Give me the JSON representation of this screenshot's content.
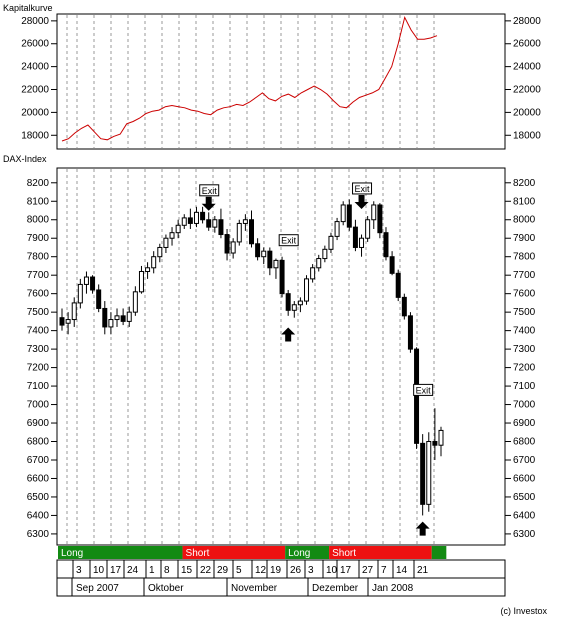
{
  "copyright": "(c) Investox",
  "chart_data": [
    {
      "type": "line",
      "title": "Kapitalkurve",
      "ylim": [
        16800,
        28600
      ],
      "yticks": [
        18000,
        20000,
        22000,
        24000,
        26000,
        28000
      ],
      "grid": "vertical-dashed",
      "line_color": "#cc0000",
      "series": [
        {
          "values": [
            17500,
            17700,
            18200,
            18600,
            18900,
            18300,
            17700,
            17600,
            17900,
            18100,
            19000,
            19200,
            19500,
            19900,
            20100,
            20200,
            20500,
            20600,
            20500,
            20400,
            20200,
            20100,
            19900,
            19800,
            20200,
            20400,
            20500,
            20700,
            20600,
            20900,
            21300,
            21700,
            21200,
            21000,
            21400,
            21600,
            21300,
            21700,
            22000,
            22300,
            22000,
            21600,
            21000,
            20500,
            20400,
            20900,
            21300,
            21500,
            21700,
            22000,
            23000,
            24000,
            26000,
            28300,
            27200,
            26400,
            26400,
            26500,
            26700
          ]
        }
      ]
    },
    {
      "type": "candlestick",
      "title": "DAX-Index",
      "ylim": [
        6240,
        8280
      ],
      "yticks": [
        6300,
        6400,
        6500,
        6600,
        6700,
        6800,
        6900,
        7000,
        7100,
        7200,
        7300,
        7400,
        7500,
        7600,
        7700,
        7800,
        7900,
        8000,
        8100,
        8200
      ],
      "grid": "vertical-dashed",
      "candles": [
        [
          7470,
          7520,
          7400,
          7430
        ],
        [
          7440,
          7500,
          7380,
          7460
        ],
        [
          7460,
          7580,
          7420,
          7550
        ],
        [
          7550,
          7680,
          7520,
          7650
        ],
        [
          7650,
          7720,
          7600,
          7690
        ],
        [
          7690,
          7700,
          7600,
          7620
        ],
        [
          7620,
          7650,
          7500,
          7520
        ],
        [
          7520,
          7560,
          7380,
          7420
        ],
        [
          7420,
          7500,
          7380,
          7460
        ],
        [
          7460,
          7520,
          7420,
          7480
        ],
        [
          7480,
          7520,
          7430,
          7450
        ],
        [
          7450,
          7530,
          7420,
          7500
        ],
        [
          7500,
          7640,
          7480,
          7610
        ],
        [
          7610,
          7750,
          7600,
          7720
        ],
        [
          7720,
          7770,
          7680,
          7740
        ],
        [
          7740,
          7830,
          7710,
          7800
        ],
        [
          7800,
          7870,
          7770,
          7850
        ],
        [
          7850,
          7920,
          7820,
          7900
        ],
        [
          7900,
          7960,
          7860,
          7930
        ],
        [
          7930,
          8000,
          7900,
          7970
        ],
        [
          7970,
          8030,
          7950,
          8010
        ],
        [
          8010,
          8060,
          7950,
          7980
        ],
        [
          7980,
          8070,
          7960,
          8040
        ],
        [
          8040,
          8070,
          7980,
          8000
        ],
        [
          8000,
          8040,
          7940,
          7960
        ],
        [
          7960,
          8020,
          7930,
          8000
        ],
        [
          8000,
          8060,
          7900,
          7920
        ],
        [
          7920,
          7950,
          7780,
          7820
        ],
        [
          7820,
          7900,
          7790,
          7880
        ],
        [
          7880,
          8000,
          7860,
          7980
        ],
        [
          7980,
          8030,
          7940,
          8000
        ],
        [
          8000,
          8050,
          7850,
          7870
        ],
        [
          7870,
          7900,
          7780,
          7800
        ],
        [
          7800,
          7850,
          7760,
          7830
        ],
        [
          7830,
          7850,
          7700,
          7740
        ],
        [
          7740,
          7790,
          7680,
          7780
        ],
        [
          7780,
          7800,
          7580,
          7600
        ],
        [
          7600,
          7620,
          7480,
          7510
        ],
        [
          7510,
          7560,
          7470,
          7540
        ],
        [
          7540,
          7580,
          7500,
          7560
        ],
        [
          7560,
          7700,
          7540,
          7680
        ],
        [
          7680,
          7760,
          7660,
          7740
        ],
        [
          7740,
          7810,
          7720,
          7790
        ],
        [
          7790,
          7860,
          7770,
          7840
        ],
        [
          7840,
          7930,
          7820,
          7910
        ],
        [
          7910,
          8010,
          7890,
          7990
        ],
        [
          7990,
          8100,
          7970,
          8080
        ],
        [
          8080,
          8110,
          7940,
          7960
        ],
        [
          7960,
          8000,
          7830,
          7850
        ],
        [
          7850,
          7920,
          7800,
          7900
        ],
        [
          7900,
          8020,
          7880,
          8000
        ],
        [
          8000,
          8100,
          7950,
          8080
        ],
        [
          8080,
          8090,
          7900,
          7930
        ],
        [
          7930,
          7960,
          7780,
          7800
        ],
        [
          7800,
          7830,
          7700,
          7710
        ],
        [
          7710,
          7730,
          7560,
          7580
        ],
        [
          7580,
          7600,
          7460,
          7480
        ],
        [
          7480,
          7500,
          7280,
          7300
        ],
        [
          7300,
          7310,
          6760,
          6790
        ],
        [
          6790,
          6840,
          6400,
          6460
        ],
        [
          6460,
          6850,
          6420,
          6800
        ],
        [
          6800,
          6980,
          6700,
          6780
        ],
        [
          6780,
          6880,
          6720,
          6860
        ]
      ],
      "markers": [
        {
          "type": "exit",
          "label": "Exit",
          "index": 24,
          "price": 8070
        },
        {
          "type": "arrow-down",
          "index": 24,
          "price": 8070
        },
        {
          "type": "exit",
          "label": "Exit",
          "index": 37,
          "price": 7800
        },
        {
          "type": "arrow-up",
          "index": 37,
          "price": 7460
        },
        {
          "type": "exit",
          "label": "Exit",
          "index": 49,
          "price": 8080
        },
        {
          "type": "arrow-down",
          "index": 49,
          "price": 8080
        },
        {
          "type": "exit",
          "label": "Exit",
          "index": 59,
          "price": 6990
        },
        {
          "type": "arrow-up",
          "index": 59,
          "price": 6410
        }
      ]
    }
  ],
  "position_bar": [
    {
      "label": "Long",
      "color": "#138a13",
      "start": 0,
      "end": 17
    },
    {
      "label": "Short",
      "color": "#ee1111",
      "start": 17,
      "end": 31
    },
    {
      "label": "Long",
      "color": "#138a13",
      "start": 31,
      "end": 37
    },
    {
      "label": "Short",
      "color": "#ee1111",
      "start": 37,
      "end": 51
    },
    {
      "label": "",
      "color": "#138a13",
      "start": 51,
      "end": 53
    }
  ],
  "date_axis": {
    "day_labels": [
      "3",
      "10",
      "17",
      "24",
      "1",
      "8",
      "15",
      "22",
      "29",
      "5",
      "12",
      "19",
      "26",
      "3",
      "10",
      "17",
      "27",
      "7",
      "14",
      "21"
    ],
    "month_labels": [
      "Sep 2007",
      "Oktober",
      "November",
      "Dezember",
      "Jan 2008"
    ]
  }
}
